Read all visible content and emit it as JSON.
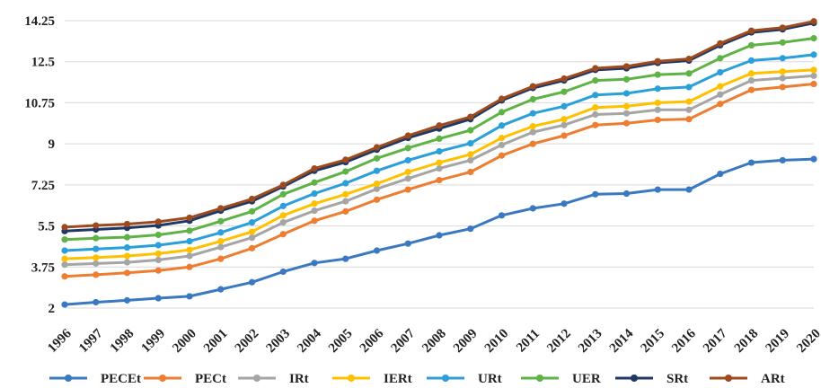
{
  "chart_data": {
    "type": "line",
    "title": "",
    "xlabel": "",
    "ylabel": "",
    "ylim": [
      2,
      14.25
    ],
    "yticks": [
      "2",
      "3.75",
      "5.5",
      "7.25",
      "9",
      "10.75",
      "12.5",
      "14.25"
    ],
    "ytick_values": [
      2,
      3.75,
      5.5,
      7.25,
      9,
      10.75,
      12.5,
      14.25
    ],
    "grid": true,
    "legend_position": "bottom",
    "categories": [
      "1996",
      "1997",
      "1998",
      "1999",
      "2000",
      "2001",
      "2002",
      "2003",
      "2004",
      "2005",
      "2006",
      "2007",
      "2008",
      "2009",
      "2010",
      "2011",
      "2012",
      "2013",
      "2014",
      "2015",
      "2016",
      "2017",
      "2018",
      "2019",
      "2020"
    ],
    "series": [
      {
        "name": "PECEt",
        "color": "#3a78c2",
        "values": [
          2.15,
          2.25,
          2.33,
          2.42,
          2.5,
          2.8,
          3.1,
          3.55,
          3.92,
          4.1,
          4.45,
          4.75,
          5.1,
          5.38,
          5.95,
          6.25,
          6.45,
          6.85,
          6.88,
          7.05,
          7.05,
          7.72,
          8.2,
          8.3,
          8.35
        ]
      },
      {
        "name": "PECt",
        "color": "#ed7d31",
        "values": [
          3.35,
          3.42,
          3.5,
          3.6,
          3.75,
          4.1,
          4.55,
          5.15,
          5.72,
          6.12,
          6.62,
          7.05,
          7.45,
          7.8,
          8.5,
          9.0,
          9.35,
          9.8,
          9.88,
          10.02,
          10.05,
          10.7,
          11.3,
          11.42,
          11.55
        ]
      },
      {
        "name": "IRt",
        "color": "#a5a5a5",
        "values": [
          3.85,
          3.9,
          3.95,
          4.05,
          4.22,
          4.6,
          5.0,
          5.65,
          6.15,
          6.55,
          7.08,
          7.52,
          7.95,
          8.3,
          8.95,
          9.5,
          9.8,
          10.25,
          10.3,
          10.45,
          10.45,
          11.1,
          11.7,
          11.8,
          11.9
        ]
      },
      {
        "name": "IERt",
        "color": "#ffc000",
        "values": [
          4.1,
          4.15,
          4.22,
          4.32,
          4.48,
          4.85,
          5.25,
          5.95,
          6.45,
          6.85,
          7.3,
          7.8,
          8.2,
          8.55,
          9.25,
          9.75,
          10.05,
          10.55,
          10.6,
          10.75,
          10.8,
          11.45,
          12.0,
          12.08,
          12.15
        ]
      },
      {
        "name": "URt",
        "color": "#2b9fd8",
        "values": [
          4.45,
          4.52,
          4.58,
          4.68,
          4.85,
          5.22,
          5.65,
          6.35,
          6.88,
          7.32,
          7.85,
          8.3,
          8.68,
          9.02,
          9.78,
          10.3,
          10.6,
          11.08,
          11.15,
          11.35,
          11.42,
          12.05,
          12.55,
          12.65,
          12.8
        ]
      },
      {
        "name": "UER",
        "color": "#5fb346",
        "values": [
          4.92,
          4.98,
          5.02,
          5.12,
          5.3,
          5.7,
          6.12,
          6.85,
          7.35,
          7.82,
          8.38,
          8.82,
          9.22,
          9.58,
          10.35,
          10.9,
          11.22,
          11.7,
          11.75,
          11.95,
          12.0,
          12.65,
          13.2,
          13.32,
          13.5
        ]
      },
      {
        "name": "SRt",
        "color": "#1f3864",
        "values": [
          5.28,
          5.35,
          5.42,
          5.52,
          5.72,
          6.15,
          6.55,
          7.18,
          7.85,
          8.22,
          8.75,
          9.25,
          9.65,
          10.05,
          10.85,
          11.38,
          11.7,
          12.15,
          12.22,
          12.45,
          12.55,
          13.2,
          13.75,
          13.88,
          14.15
        ]
      },
      {
        "name": "ARt",
        "color": "#9e4a1f",
        "values": [
          5.45,
          5.52,
          5.58,
          5.68,
          5.85,
          6.25,
          6.65,
          7.25,
          7.95,
          8.32,
          8.85,
          9.35,
          9.78,
          10.15,
          10.92,
          11.45,
          11.78,
          12.22,
          12.3,
          12.52,
          12.62,
          13.28,
          13.82,
          13.95,
          14.22
        ]
      }
    ]
  }
}
